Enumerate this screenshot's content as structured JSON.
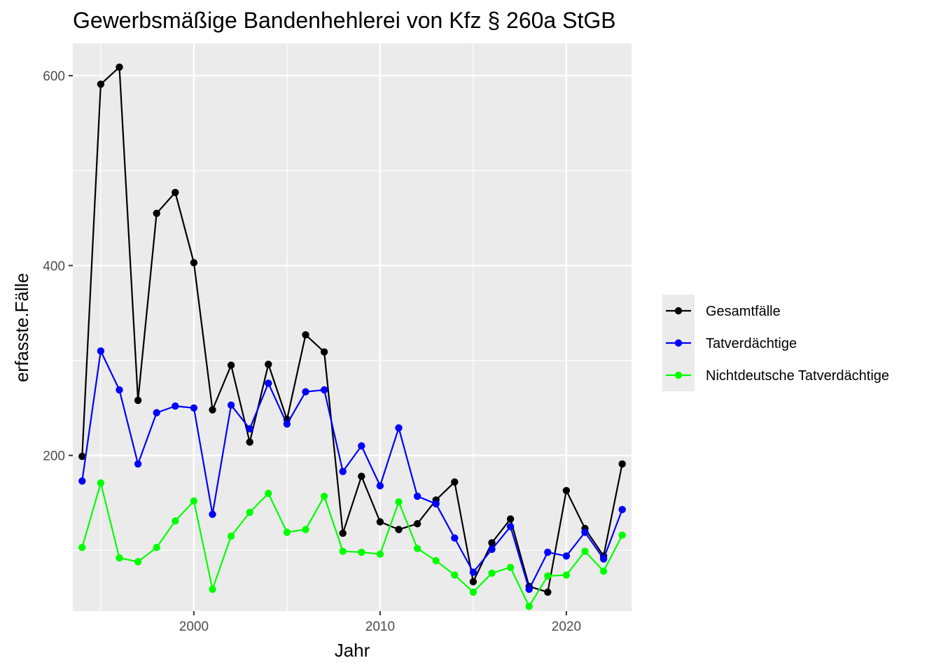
{
  "chart_data": {
    "type": "line",
    "title": "Gewerbsmäßige Bandenhehlerei von Kfz § 260a StGB",
    "xlabel": "Jahr",
    "ylabel": "erfasste.Fälle",
    "xlim": [
      1993.5,
      2023.5
    ],
    "ylim": [
      36,
      634
    ],
    "x_ticks": [
      2000,
      2010,
      2020
    ],
    "y_ticks": [
      200,
      400,
      600
    ],
    "x_minor": [
      1995,
      2005,
      2015
    ],
    "y_minor": [
      100,
      300,
      500
    ],
    "grid": true,
    "legend_position": "right",
    "x": [
      1994,
      1995,
      1996,
      1997,
      1998,
      1999,
      2000,
      2001,
      2002,
      2003,
      2004,
      2005,
      2006,
      2007,
      2008,
      2009,
      2010,
      2011,
      2012,
      2013,
      2014,
      2015,
      2016,
      2017,
      2018,
      2019,
      2020,
      2021,
      2022,
      2023
    ],
    "series": [
      {
        "name": "Gesamtfälle",
        "color": "#000000",
        "values": [
          199,
          591,
          609,
          258,
          455,
          477,
          403,
          248,
          295,
          214,
          296,
          238,
          327,
          309,
          118,
          178,
          130,
          122,
          128,
          153,
          172,
          67,
          108,
          133,
          62,
          56,
          163,
          123,
          94,
          191
        ]
      },
      {
        "name": "Tatverdächtige",
        "color": "#0000ff",
        "values": [
          173,
          310,
          269,
          191,
          245,
          252,
          250,
          138,
          253,
          228,
          276,
          233,
          267,
          269,
          183,
          210,
          168,
          229,
          157,
          149,
          113,
          77,
          101,
          125,
          59,
          98,
          94,
          119,
          91,
          143
        ]
      },
      {
        "name": "Nichtdeutsche Tatverdächtige",
        "color": "#00ff00",
        "values": [
          103,
          171,
          92,
          88,
          103,
          131,
          152,
          59,
          115,
          140,
          160,
          119,
          122,
          157,
          99,
          98,
          96,
          151,
          102,
          89,
          74,
          56,
          76,
          82,
          41,
          73,
          74,
          99,
          78,
          116
        ]
      }
    ]
  }
}
